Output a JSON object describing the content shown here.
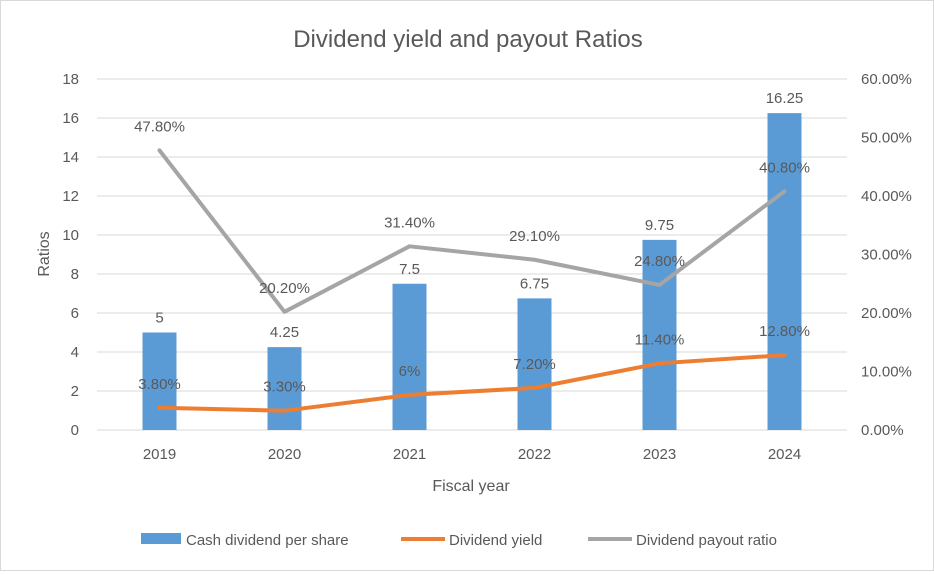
{
  "chart_data": {
    "type": "bar+line",
    "title": "Dividend yield and payout Ratios",
    "xlabel": "Fiscal year",
    "ylabel": "Ratios",
    "categories": [
      "2019",
      "2020",
      "2021",
      "2022",
      "2023",
      "2024"
    ],
    "ylim": [
      0,
      18
    ],
    "yticks": [
      "0",
      "2",
      "4",
      "6",
      "8",
      "10",
      "12",
      "14",
      "16",
      "18"
    ],
    "y2lim": [
      0,
      60
    ],
    "y2ticks": [
      "0.00%",
      "10.00%",
      "20.00%",
      "30.00%",
      "40.00%",
      "50.00%",
      "60.00%"
    ],
    "grid": true,
    "legend_position": "bottom",
    "series": [
      {
        "name": "Cash dividend per share",
        "type": "bar",
        "axis": "left",
        "color": "#5b9bd5",
        "values": [
          5,
          4.25,
          7.5,
          6.75,
          9.75,
          16.25
        ],
        "labels": [
          "5",
          "4.25",
          "7.5",
          "6.75",
          "9.75",
          "16.25"
        ]
      },
      {
        "name": "Dividend yield",
        "type": "line",
        "axis": "right",
        "color": "#ed7d31",
        "values": [
          3.8,
          3.3,
          6,
          7.2,
          11.4,
          12.8
        ],
        "labels": [
          "3.80%",
          "3.30%",
          "6%",
          "7.20%",
          "11.40%",
          "12.80%"
        ]
      },
      {
        "name": "Dividend payout ratio",
        "type": "line",
        "axis": "right",
        "color": "#a5a5a5",
        "values": [
          47.8,
          20.2,
          31.4,
          29.1,
          24.8,
          40.8
        ],
        "labels": [
          "47.80%",
          "20.20%",
          "31.40%",
          "29.10%",
          "24.80%",
          "40.80%"
        ]
      }
    ]
  }
}
